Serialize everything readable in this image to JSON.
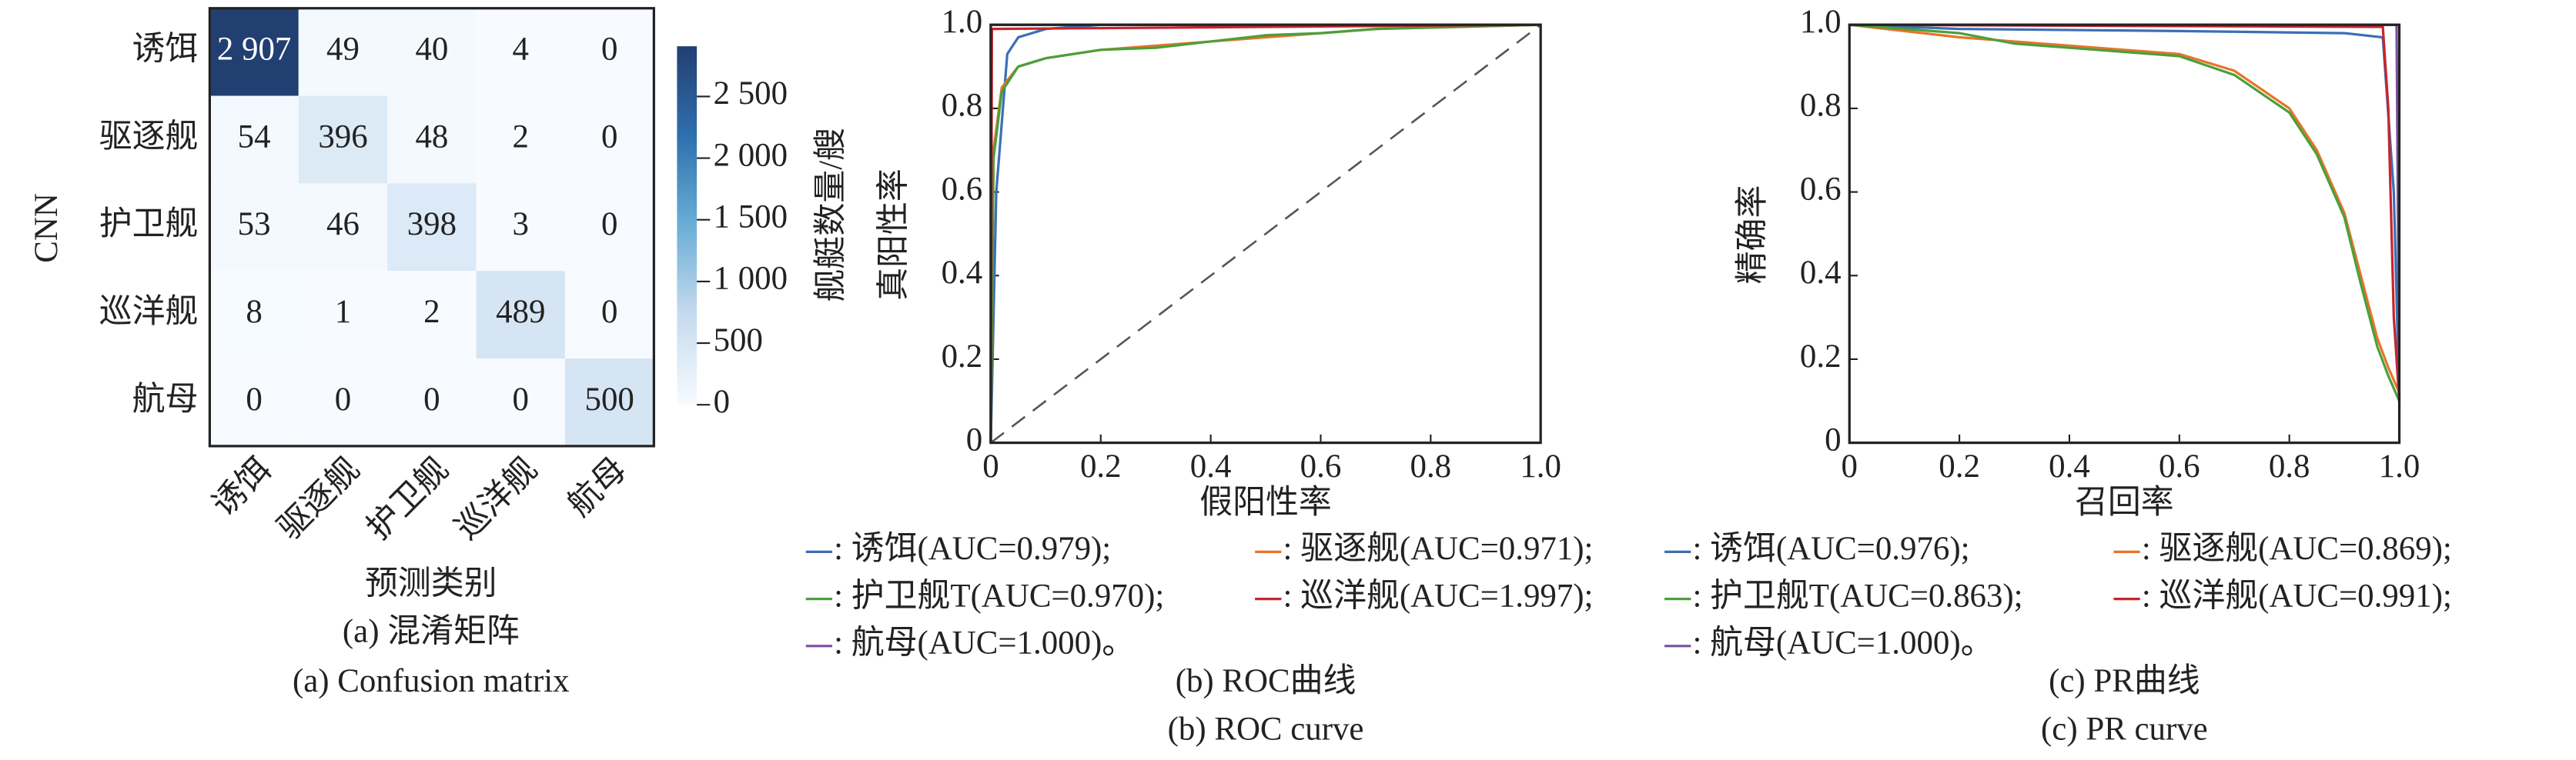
{
  "chart_data": [
    {
      "type": "heatmap",
      "x_label": "预测类别",
      "y_label": "CNN",
      "caption_cn": "(a) 混淆矩阵",
      "caption_en": "(a) Confusion matrix",
      "categories": [
        "诱饵",
        "驱逐舰",
        "护卫舰",
        "巡洋舰",
        "航母"
      ],
      "values": [
        [
          2907,
          49,
          40,
          4,
          0
        ],
        [
          54,
          396,
          48,
          2,
          0
        ],
        [
          53,
          46,
          398,
          3,
          0
        ],
        [
          8,
          1,
          2,
          489,
          0
        ],
        [
          0,
          0,
          0,
          0,
          500
        ]
      ],
      "value_labels": [
        [
          "2 907",
          "49",
          "40",
          "4",
          "0"
        ],
        [
          "54",
          "396",
          "48",
          "2",
          "0"
        ],
        [
          "53",
          "46",
          "398",
          "3",
          "0"
        ],
        [
          "8",
          "1",
          "2",
          "489",
          "0"
        ],
        [
          "0",
          "0",
          "0",
          "0",
          "500"
        ]
      ],
      "colorbar_label": "舰艇数量/艘",
      "clim": [
        0,
        2907
      ],
      "cticks": [
        0,
        500,
        {
          "value": 1000,
          "label": "1 000"
        },
        {
          "value": 1500,
          "label": "1 500"
        },
        {
          "value": 2000,
          "label": "2 000"
        },
        {
          "value": 2500,
          "label": "2 500"
        }
      ],
      "colormap": [
        "#f7fbff",
        "#c6dbef",
        "#6baed6",
        "#2f6fae",
        "#223f72"
      ]
    },
    {
      "type": "line",
      "x_label": "假阳性率",
      "y_label": "真阳性率",
      "caption_cn": "(b) ROC曲线",
      "caption_en": "(b) ROC curve",
      "xlim": [
        0,
        1
      ],
      "ylim": [
        0,
        1
      ],
      "xticks": [
        0,
        0.2,
        0.4,
        0.6,
        0.8,
        {
          "value": 1,
          "label": "1.0"
        }
      ],
      "yticks": [
        0,
        0.2,
        0.4,
        0.6,
        0.8,
        {
          "value": 1,
          "label": "1.0"
        }
      ],
      "series": [
        {
          "name": ": 诱饵(AUC=0.979);",
          "color": "#3b6fb6",
          "x": [
            0,
            0.01,
            0.03,
            0.05,
            0.1,
            0.2,
            1
          ],
          "values": [
            0,
            0.6,
            0.93,
            0.97,
            0.99,
            1,
            1
          ]
        },
        {
          "name": ": 驱逐舰(AUC=0.971);",
          "color": "#e8742a",
          "x": [
            0,
            0.005,
            0.02,
            0.05,
            0.1,
            0.2,
            0.3,
            0.4,
            0.5,
            0.6,
            0.7,
            1
          ],
          "values": [
            0,
            0.7,
            0.85,
            0.9,
            0.92,
            0.94,
            0.95,
            0.96,
            0.97,
            0.98,
            0.99,
            1
          ]
        },
        {
          "name": ": 护卫舰T(AUC=0.970);",
          "color": "#4aa03c",
          "x": [
            0,
            0.005,
            0.02,
            0.05,
            0.1,
            0.2,
            0.3,
            0.4,
            0.5,
            0.6,
            0.7,
            1
          ],
          "values": [
            0,
            0.68,
            0.84,
            0.9,
            0.92,
            0.94,
            0.945,
            0.96,
            0.975,
            0.98,
            0.99,
            1
          ]
        },
        {
          "name": ": 巡洋舰(AUC=1.997);",
          "color": "#c8242c",
          "x": [
            0,
            0.002,
            1
          ],
          "values": [
            0,
            0.99,
            1
          ]
        },
        {
          "name": ": 航母(AUC=1.000)。",
          "color": "#7b4fa0",
          "x": [
            0,
            0,
            1
          ],
          "values": [
            0,
            1,
            1
          ]
        }
      ]
    },
    {
      "type": "line",
      "x_label": "召回率",
      "y_label": "精确率",
      "caption_cn": "(c) PR曲线",
      "caption_en": "(c) PR curve",
      "xlim": [
        0,
        1
      ],
      "ylim": [
        0,
        1
      ],
      "xticks": [
        0,
        0.2,
        0.4,
        0.6,
        0.8,
        {
          "value": 1,
          "label": "1.0"
        }
      ],
      "yticks": [
        0,
        0.2,
        0.4,
        0.6,
        0.8,
        {
          "value": 1,
          "label": "1.0"
        }
      ],
      "series": [
        {
          "name": ": 诱饵(AUC=0.976);",
          "color": "#3b6fb6",
          "x": [
            0,
            0.2,
            0.6,
            0.9,
            0.97,
            0.99,
            1
          ],
          "values": [
            1,
            0.99,
            0.985,
            0.98,
            0.97,
            0.6,
            0.1
          ]
        },
        {
          "name": ": 驱逐舰(AUC=0.869);",
          "color": "#e8742a",
          "x": [
            0,
            0.2,
            0.3,
            0.5,
            0.6,
            0.7,
            0.8,
            0.85,
            0.9,
            0.93,
            0.96,
            0.98,
            1
          ],
          "values": [
            1,
            0.97,
            0.96,
            0.94,
            0.93,
            0.89,
            0.8,
            0.7,
            0.55,
            0.4,
            0.25,
            0.18,
            0.12
          ]
        },
        {
          "name": ": 护卫舰T(AUC=0.863);",
          "color": "#4aa03c",
          "x": [
            0,
            0.2,
            0.3,
            0.5,
            0.6,
            0.7,
            0.8,
            0.85,
            0.9,
            0.93,
            0.96,
            0.98,
            1
          ],
          "values": [
            1,
            0.98,
            0.955,
            0.935,
            0.925,
            0.88,
            0.79,
            0.69,
            0.54,
            0.38,
            0.23,
            0.16,
            0.1
          ]
        },
        {
          "name": ": 巡洋舰(AUC=0.991);",
          "color": "#c8242c",
          "x": [
            0,
            0.97,
            0.98,
            0.99,
            1
          ],
          "values": [
            1,
            0.995,
            0.8,
            0.3,
            0.1
          ]
        },
        {
          "name": ": 航母(AUC=1.000)。",
          "color": "#7b4fa0",
          "x": [
            0,
            0.995,
            1
          ],
          "values": [
            1,
            1,
            0.1
          ]
        }
      ]
    }
  ]
}
